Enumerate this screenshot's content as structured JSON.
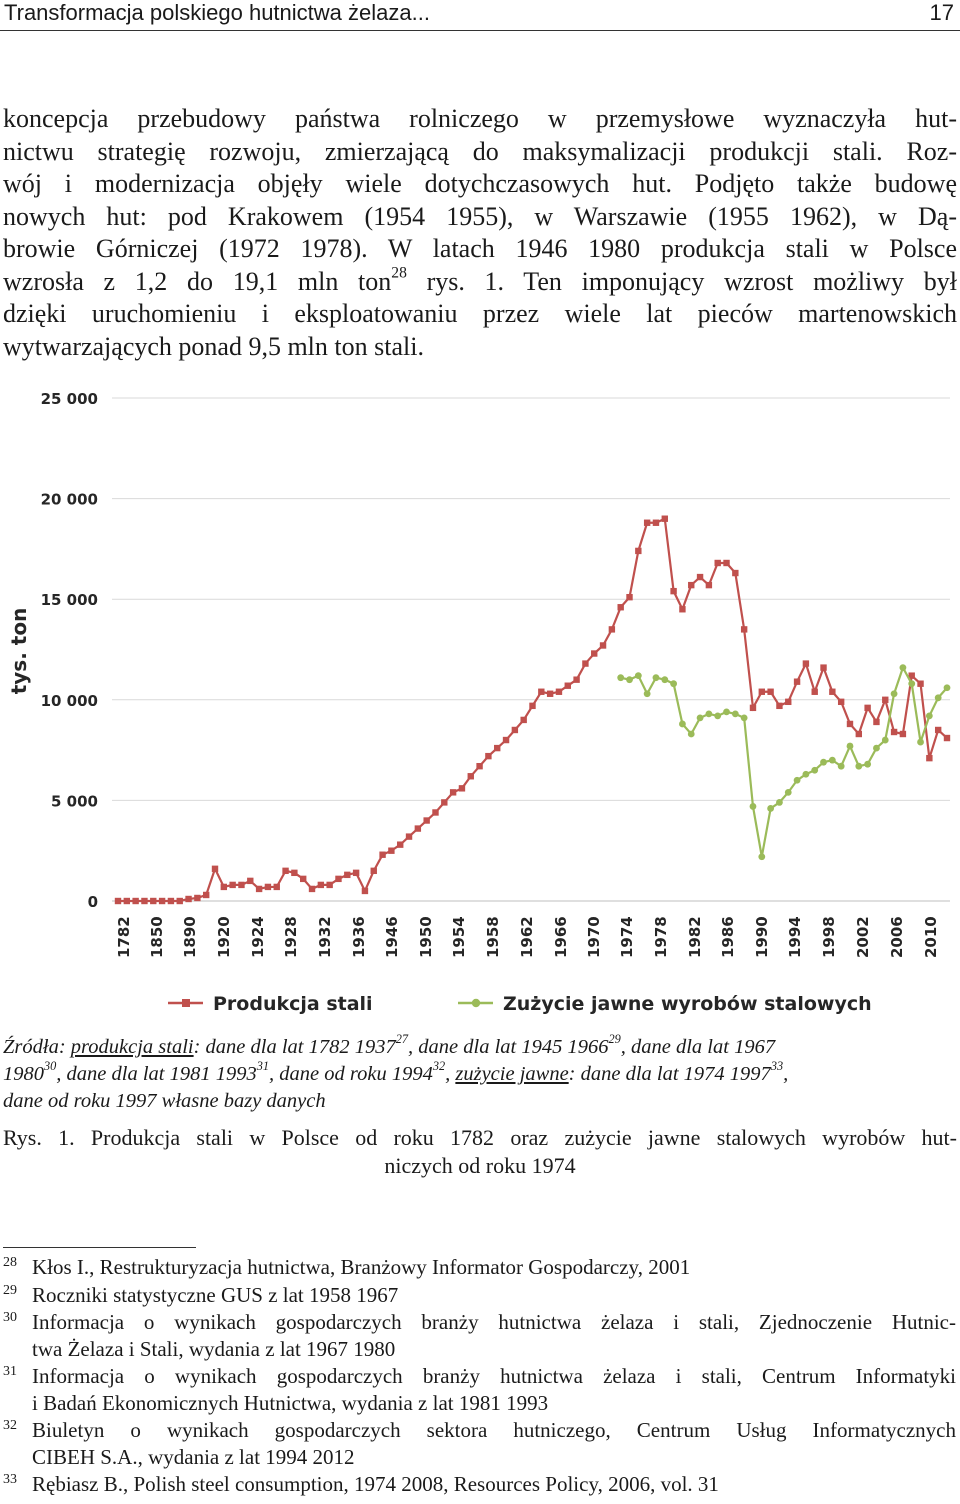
{
  "header": {
    "title": "Transformacja polskiego hutnictwa żelaza...",
    "page_number": "17"
  },
  "body": {
    "lines": [
      "koncepcja przebudowy państwa rolniczego w przemysłowe wyznaczyła hut-",
      "nictwu strategię rozwoju, zmierzającą do maksymalizacji produkcji stali. Roz-",
      "wój i modernizacja objęły wiele dotychczasowych hut. Podjęto także budowę",
      "nowych hut: pod Krakowem (1954 1955), w Warszawie (1955 1962), w Dą-",
      "browie Górniczej (1972 1978). W latach 1946 1980 produkcja stali w Polsce"
    ],
    "line6_a": "wzrosła z 1,2 do 19,1 mln ton",
    "line6_sup": "28",
    "line6_b": " rys. 1. Ten imponujący wzrost możliwy był",
    "line7": "dzięki uruchomieniu i eksploatowaniu przez wiele lat pieców martenowskich",
    "line8": "wytwarzających ponad 9,5 mln ton stali."
  },
  "colors": {
    "production": "#c0504d",
    "consumption": "#9bbb59",
    "grid": "#d9d9d9"
  },
  "chart_data": {
    "type": "line",
    "ylabel": "tys. ton",
    "ylim": [
      0,
      25000
    ],
    "yticks": [
      "0",
      "5 000",
      "10 000",
      "15 000",
      "20 000",
      "25 000"
    ],
    "ytick_values": [
      0,
      5000,
      10000,
      15000,
      20000,
      25000
    ],
    "xlabels": [
      "1782",
      "1850",
      "1890",
      "1920",
      "1924",
      "1928",
      "1932",
      "1936",
      "1946",
      "1950",
      "1954",
      "1958",
      "1962",
      "1966",
      "1970",
      "1974",
      "1978",
      "1982",
      "1986",
      "1990",
      "1994",
      "1998",
      "2002",
      "2006",
      "2010"
    ],
    "grid": "horizontal",
    "legend_position": "bottom",
    "series": [
      {
        "name": "Produkcja stali",
        "color": "#c0504d",
        "marker": "square",
        "values": [
          0,
          0,
          0,
          0,
          0,
          0,
          0,
          0,
          100,
          150,
          300,
          1600,
          700,
          800,
          800,
          1000,
          600,
          700,
          700,
          1500,
          1400,
          1100,
          600,
          800,
          800,
          1100,
          1300,
          1400,
          500,
          1500,
          2300,
          2500,
          2800,
          3200,
          3600,
          4000,
          4400,
          4900,
          5400,
          5600,
          6200,
          6700,
          7200,
          7600,
          8000,
          8500,
          9000,
          9700,
          10400,
          10300,
          10400,
          10700,
          11000,
          11800,
          12300,
          12700,
          13500,
          14600,
          15100,
          17400,
          18800,
          18800,
          19000,
          15400,
          14500,
          15700,
          16100,
          15700,
          16800,
          16800,
          16300,
          13500,
          9600,
          10400,
          10400,
          9700,
          9900,
          10900,
          11800,
          10400,
          11600,
          10400,
          9900,
          8800,
          8300,
          9600,
          8900,
          10000,
          8400,
          8300,
          11200,
          10800,
          7100,
          8500,
          8100
        ],
        "x_positions": [
          1,
          2,
          3,
          4,
          5,
          6,
          7,
          8,
          9,
          10,
          11,
          12,
          13,
          14,
          15,
          16,
          17,
          18,
          19,
          20,
          21,
          22,
          23,
          24,
          25,
          26,
          27,
          28,
          29,
          30,
          31,
          32,
          33,
          34,
          35,
          36,
          37,
          38,
          39,
          40,
          41,
          42,
          43,
          44,
          45,
          46,
          47,
          48,
          49,
          50,
          51,
          52,
          53,
          54,
          55,
          56,
          57,
          58,
          59,
          60,
          61,
          62,
          63,
          64,
          65,
          66,
          67,
          68,
          69,
          70,
          71,
          72,
          73,
          74,
          75,
          76,
          77,
          78,
          79,
          80,
          81,
          82,
          83,
          84,
          85,
          86,
          87,
          88,
          89,
          90,
          91,
          92,
          93,
          94,
          95
        ]
      },
      {
        "name": "Zużycie jawne wyrobów stalowych",
        "color": "#9bbb59",
        "marker": "circle",
        "values": [
          11100,
          11000,
          11200,
          10300,
          11100,
          11000,
          10800,
          8800,
          8300,
          9100,
          9300,
          9200,
          9400,
          9300,
          9100,
          4700,
          2200,
          4600,
          4900,
          5400,
          6000,
          6300,
          6500,
          6900,
          7000,
          6700,
          7700,
          6700,
          6800,
          7600,
          8000,
          10300,
          11600,
          10800,
          7900,
          9200,
          10100,
          10600
        ],
        "x_positions": [
          58,
          59,
          60,
          61,
          62,
          63,
          64,
          65,
          66,
          67,
          68,
          69,
          70,
          71,
          72,
          73,
          74,
          75,
          76,
          77,
          78,
          79,
          80,
          81,
          82,
          83,
          84,
          85,
          86,
          87,
          88,
          89,
          90,
          91,
          92,
          93,
          94,
          95
        ]
      }
    ]
  },
  "source": {
    "l1_a": "Źródła: ",
    "l1_link": "produkcja stali",
    "l1_b": ": dane dla lat 1782 1937",
    "l1_s1": "27",
    "l1_c": ", dane dla lat 1945 1966",
    "l1_s2": "29",
    "l1_d": ", dane dla lat 1967",
    "l2_a": "1980",
    "l2_s1": "30",
    "l2_b": ", dane dla lat 1981 1993",
    "l2_s2": "31",
    "l2_c": ", dane od roku 1994",
    "l2_s3": "32",
    "l2_d": ", ",
    "l2_link": "zużycie jawne",
    "l2_e": ": dane dla lat 1974 1997",
    "l2_s4": "33",
    "l2_f": ",",
    "l3": "dane od roku 1997 własne bazy danych"
  },
  "caption": {
    "l1": "Rys. 1. Produkcja stali w Polsce od roku 1782 oraz zużycie jawne stalowych wyrobów hut-",
    "l2": "niczych od roku 1974"
  },
  "footnotes": [
    {
      "n": "28",
      "lines": [
        "Kłos I., Restrukturyzacja hutnictwa, Branżowy Informator Gospodarczy, 2001"
      ]
    },
    {
      "n": "29",
      "lines": [
        "Roczniki statystyczne GUS z lat 1958 1967"
      ]
    },
    {
      "n": "30",
      "lines": [
        "Informacja o wynikach gospodarczych branży hutnictwa żelaza i stali, Zjednoczenie Hutnic-",
        "twa Żelaza i Stali, wydania z lat 1967 1980"
      ]
    },
    {
      "n": "31",
      "lines": [
        "Informacja o wynikach gospodarczych branży hutnictwa żelaza i stali, Centrum Informatyki",
        "i Badań Ekonomicznych Hutnictwa, wydania z lat 1981 1993"
      ]
    },
    {
      "n": "32",
      "lines": [
        "Biuletyn o wynikach gospodarczych sektora hutniczego, Centrum Usług Informatycznych",
        "CIBEH S.A., wydania z lat 1994 2012"
      ]
    },
    {
      "n": "33",
      "lines": [
        "Rębiasz B., Polish steel consumption, 1974 2008, Resources Policy, 2006, vol. 31"
      ]
    }
  ]
}
